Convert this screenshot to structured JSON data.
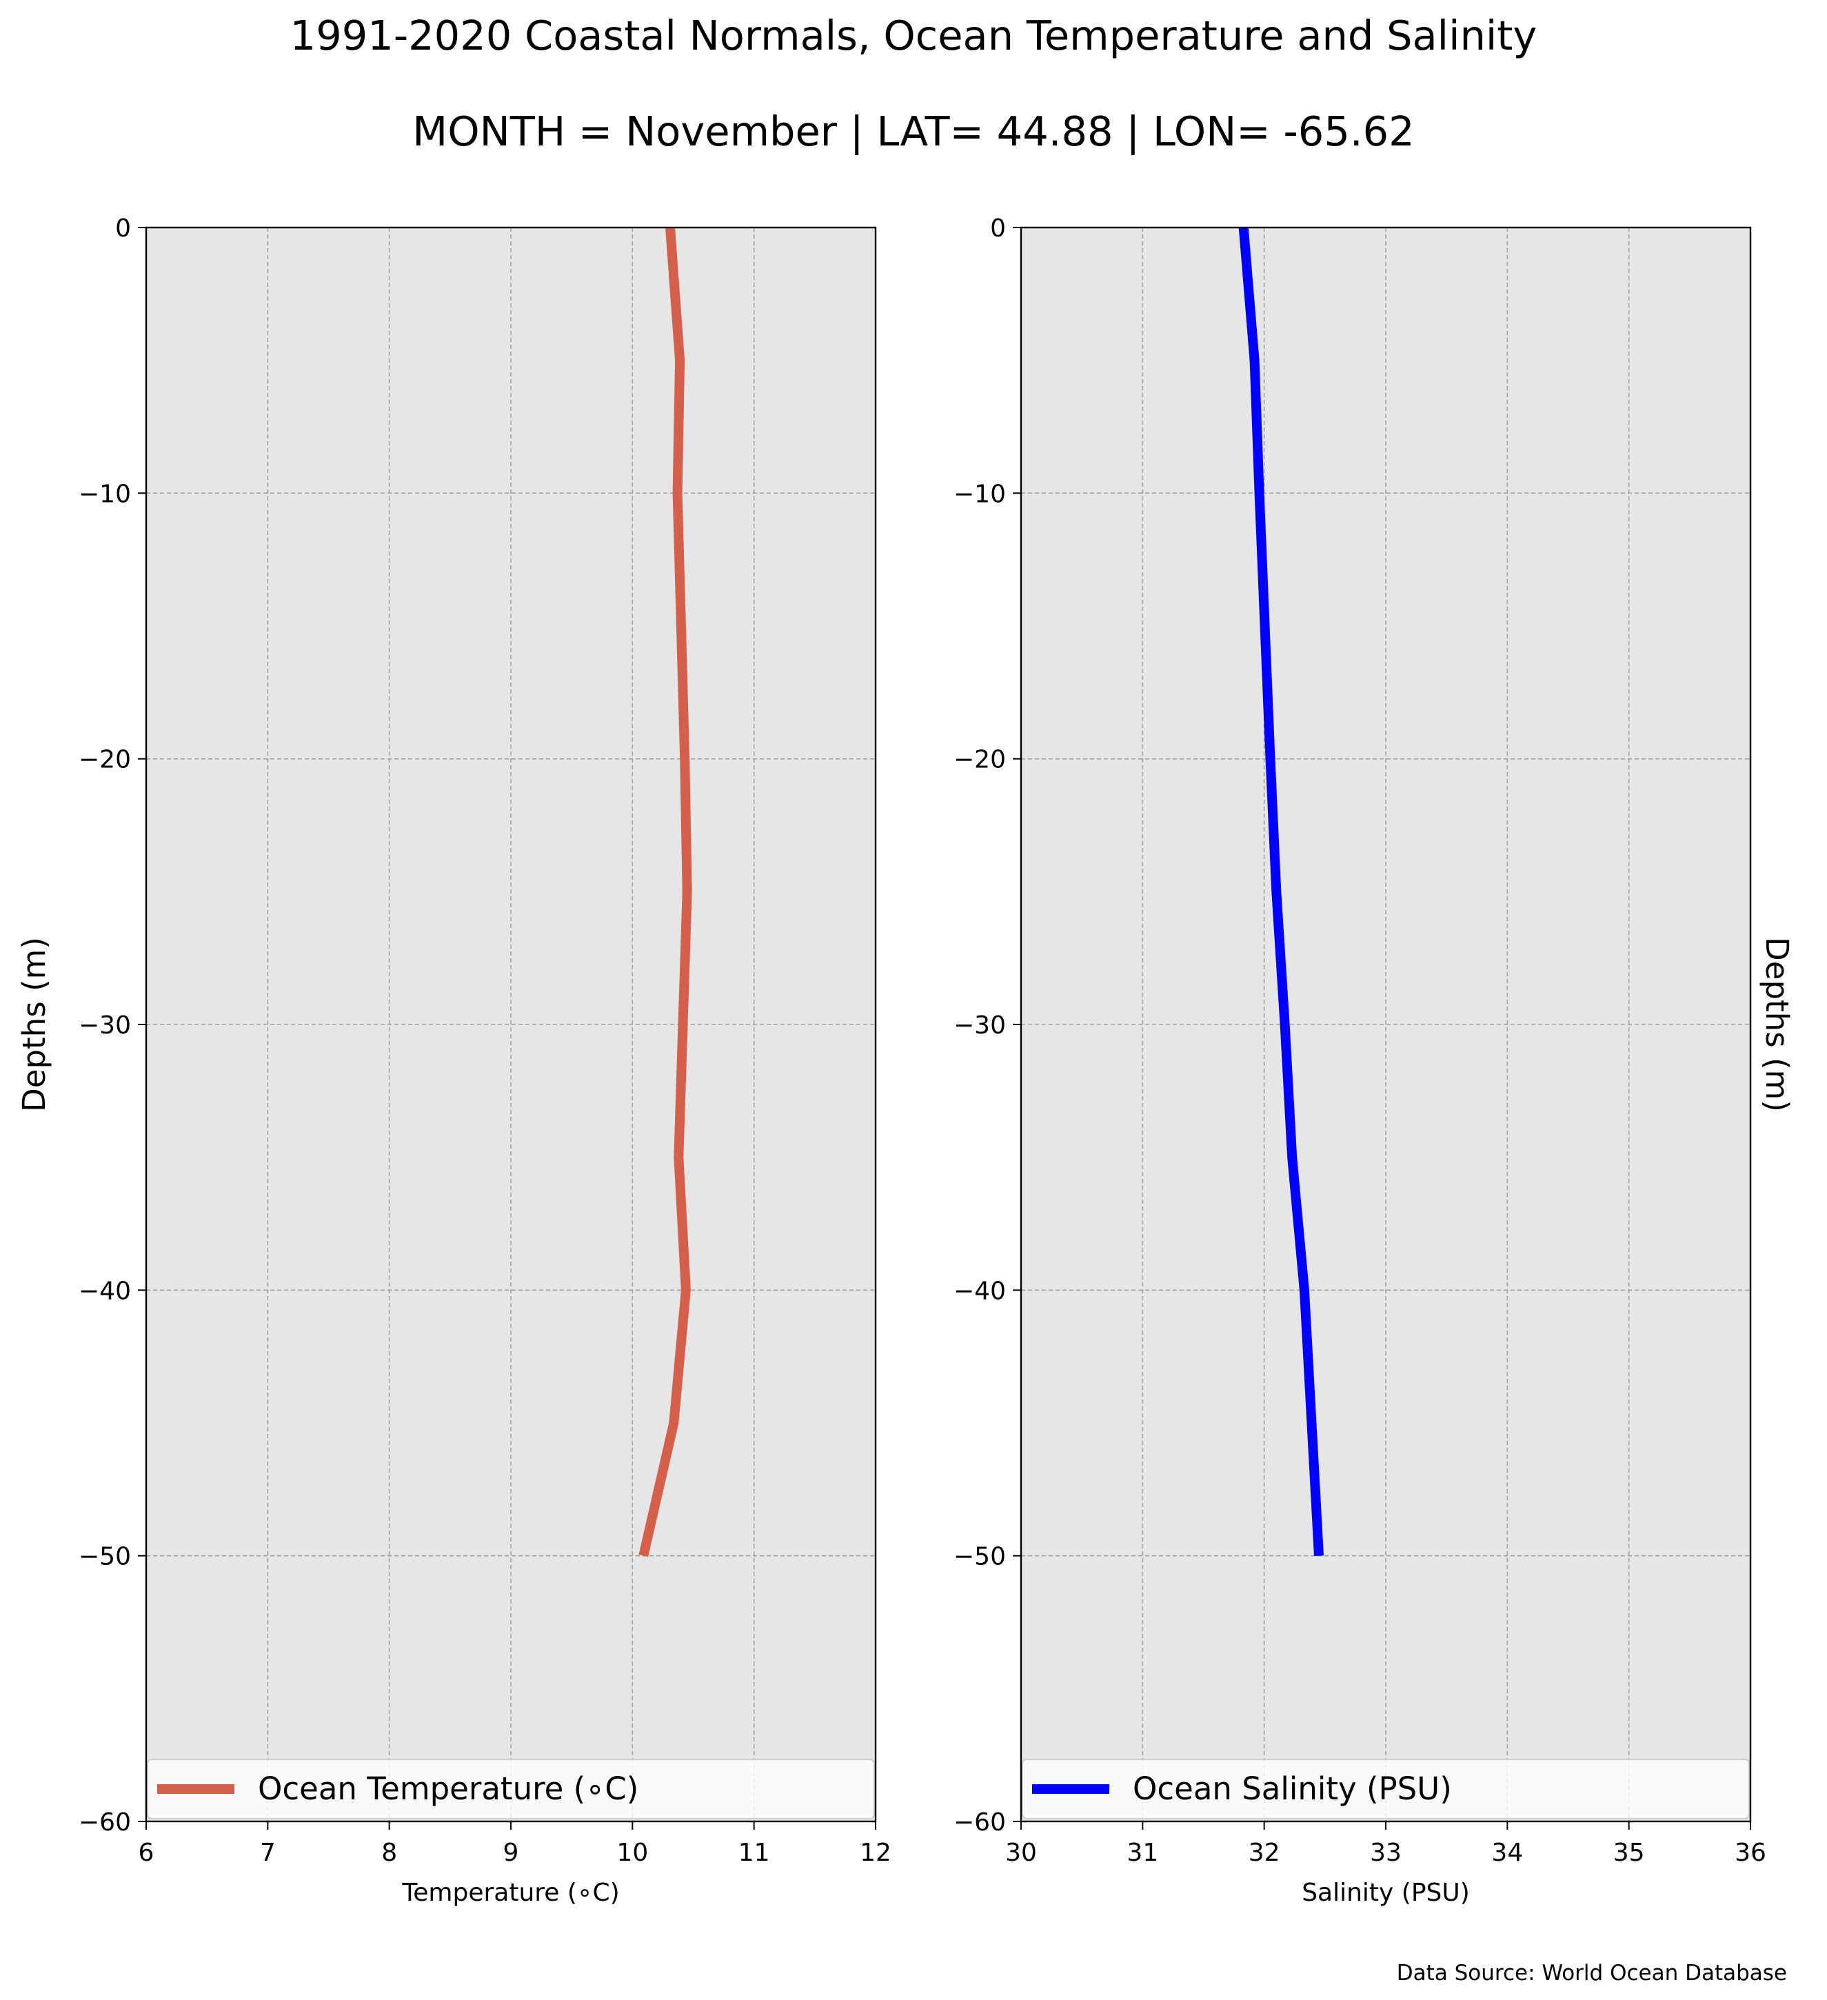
{
  "title": "1991-2020 Coastal Normals, Ocean Temperature and Salinity",
  "subtitle": "MONTH = November | LAT= 44.88 | LON= -65.62",
  "source_note": "Data Source: World Ocean Database",
  "colors": {
    "background": "#ffffff",
    "plot_background": "#e6e6e6",
    "grid": "#a0a0a0",
    "temperature": "#d45f4a",
    "salinity": "#0000ff"
  },
  "chart_data": [
    {
      "type": "line",
      "series": [
        {
          "name": "Ocean Temperature ($^\\circ$C)",
          "legend_label": "Ocean Temperature (∘C)",
          "x": [
            10.31,
            10.39,
            10.37,
            10.43,
            10.45,
            10.38,
            10.44,
            10.34,
            10.09
          ],
          "y": [
            0,
            -5,
            -10,
            -20,
            -25,
            -35,
            -40,
            -45,
            -50
          ]
        }
      ],
      "xlabel": "Temperature (∘C)",
      "ylabel": "Depths (m)",
      "xlim": [
        6,
        12
      ],
      "ylim": [
        -60,
        0
      ],
      "xticks": [
        6,
        7,
        8,
        9,
        10,
        11,
        12
      ],
      "xtick_labels": [
        "6",
        "7",
        "8",
        "9",
        "10",
        "11",
        "12"
      ],
      "yticks": [
        0,
        -10,
        -20,
        -30,
        -40,
        -50,
        -60
      ],
      "ytick_labels": [
        "0",
        "−10",
        "−20",
        "−30",
        "−40",
        "−50",
        "−60"
      ],
      "grid": true,
      "legend_position": "lower center"
    },
    {
      "type": "line",
      "series": [
        {
          "name": "Ocean Salinity (PSU)",
          "legend_label": "Ocean Salinity (PSU)",
          "x": [
            31.83,
            31.92,
            31.96,
            32.05,
            32.1,
            32.17,
            32.23,
            32.33,
            32.45
          ],
          "y": [
            0,
            -5,
            -10,
            -20,
            -25,
            -30,
            -35,
            -40,
            -50
          ]
        }
      ],
      "xlabel": "Salinity (PSU)",
      "ylabel": "Depths (m)",
      "xlim": [
        30,
        36
      ],
      "ylim": [
        -60,
        0
      ],
      "xticks": [
        30,
        31,
        32,
        33,
        34,
        35,
        36
      ],
      "xtick_labels": [
        "30",
        "31",
        "32",
        "33",
        "34",
        "35",
        "36"
      ],
      "yticks": [
        0,
        -10,
        -20,
        -30,
        -40,
        -50,
        -60
      ],
      "ytick_labels": [
        "0",
        "−10",
        "−20",
        "−30",
        "−40",
        "−50",
        "−60"
      ],
      "grid": true,
      "legend_position": "lower center"
    }
  ]
}
